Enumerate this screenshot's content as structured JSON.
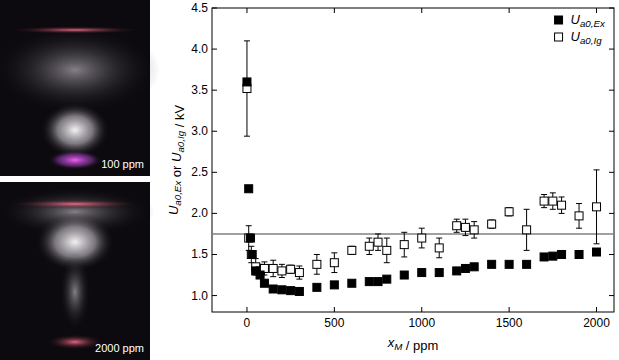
{
  "chart_data": {
    "type": "scatter",
    "x_label": "xM / ppm",
    "y_label": "Ua0,Ex or Ua0,Ig / kV",
    "xlim": [
      -200,
      2100
    ],
    "xticks": [
      0,
      500,
      1000,
      1500,
      2000
    ],
    "ylim": [
      0.8,
      4.5
    ],
    "yticks": [
      {
        "value": 1,
        "label": "1.0"
      },
      1.5,
      {
        "value": 2,
        "label": "2.0"
      },
      2.5,
      {
        "value": 3,
        "label": "3.0"
      },
      3.5,
      {
        "value": 4,
        "label": "4.0"
      },
      4.5
    ],
    "hline": 1.75,
    "legend": "top-right",
    "grid": false,
    "series": [
      {
        "name": "Ua0,Ex",
        "color": "#000000",
        "marker": "filled-square",
        "x": [
          0,
          10,
          20,
          30,
          50,
          75,
          100,
          150,
          200,
          250,
          300,
          400,
          500,
          600,
          700,
          750,
          800,
          900,
          1000,
          1100,
          1200,
          1250,
          1300,
          1400,
          1500,
          1600,
          1700,
          1750,
          1800,
          1900,
          2000
        ],
        "values": [
          3.6,
          2.3,
          1.7,
          1.5,
          1.3,
          1.25,
          1.15,
          1.08,
          1.07,
          1.06,
          1.05,
          1.1,
          1.13,
          1.15,
          1.17,
          1.17,
          1.2,
          1.25,
          1.28,
          1.28,
          1.3,
          1.33,
          1.35,
          1.38,
          1.38,
          1.38,
          1.47,
          1.48,
          1.5,
          1.5,
          1.53
        ]
      },
      {
        "name": "Ua0,Ig",
        "color": "#000000",
        "marker": "open-square",
        "x": [
          0,
          10,
          25,
          50,
          75,
          100,
          150,
          200,
          250,
          300,
          400,
          500,
          600,
          700,
          750,
          800,
          900,
          1000,
          1100,
          1200,
          1250,
          1300,
          1400,
          1500,
          1600,
          1700,
          1750,
          1800,
          1900,
          2000
        ],
        "values": [
          3.52,
          1.7,
          1.5,
          1.35,
          1.3,
          1.33,
          1.33,
          1.3,
          1.32,
          1.28,
          1.38,
          1.4,
          1.55,
          1.6,
          1.65,
          1.55,
          1.62,
          1.7,
          1.58,
          1.85,
          1.83,
          1.8,
          1.87,
          2.02,
          1.8,
          2.15,
          2.15,
          2.1,
          1.97,
          2.08
        ],
        "errors": [
          0.58,
          0.15,
          0.1,
          0.1,
          0.08,
          0.08,
          0.1,
          0.08,
          0.05,
          0.08,
          0.12,
          0.12,
          0.05,
          0.1,
          0.1,
          0.15,
          0.15,
          0.12,
          0.12,
          0.08,
          0.1,
          0.1,
          0.05,
          0.05,
          0.25,
          0.08,
          0.1,
          0.1,
          0.15,
          0.45
        ]
      }
    ]
  },
  "photos": [
    {
      "label": "100 ppm"
    },
    {
      "label": "2000 ppm"
    }
  ]
}
